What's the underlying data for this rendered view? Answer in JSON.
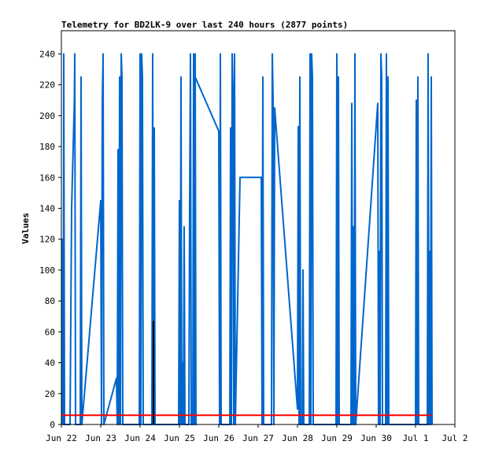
{
  "chart_data": {
    "type": "line",
    "title": "Telemetry for BD2LK-9 over last 240 hours (2877 points)",
    "xlabel": "",
    "ylabel": "Values",
    "x_ticks": [
      "Jun 22",
      "Jun 23",
      "Jun 24",
      "Jun 25",
      "Jun 26",
      "Jun 27",
      "Jun 28",
      "Jun 29",
      "Jun 30",
      "Jul 1",
      "Jul 2"
    ],
    "xlim_days": [
      0,
      10
    ],
    "ylim": [
      0,
      255
    ],
    "y_ticks": [
      0,
      20,
      40,
      60,
      80,
      100,
      120,
      140,
      160,
      180,
      200,
      220,
      240
    ],
    "grid": false,
    "legend": "none",
    "colors": {
      "blue": "#0066cc",
      "red": "#ff0000",
      "black": "#000000",
      "frame": "#000000"
    },
    "series": [
      {
        "color": "#0066cc",
        "points": [
          [
            0.02,
            0
          ],
          [
            0.03,
            120
          ],
          [
            0.05,
            0
          ],
          [
            0.06,
            240
          ],
          [
            0.08,
            0
          ],
          [
            0.22,
            0
          ],
          [
            0.26,
            140
          ],
          [
            0.3,
            180
          ],
          [
            0.33,
            210
          ],
          [
            0.34,
            240
          ],
          [
            0.36,
            0
          ],
          [
            0.48,
            0
          ],
          [
            0.5,
            225
          ],
          [
            0.52,
            0
          ],
          [
            1.0,
            145
          ],
          [
            1.02,
            0
          ],
          [
            1.04,
            210
          ],
          [
            1.06,
            240
          ],
          [
            1.08,
            0
          ],
          [
            1.4,
            30
          ],
          [
            1.42,
            0
          ],
          [
            1.44,
            178
          ],
          [
            1.46,
            0
          ],
          [
            1.48,
            225
          ],
          [
            1.5,
            0
          ],
          [
            1.52,
            240
          ],
          [
            1.54,
            225
          ],
          [
            1.56,
            0
          ],
          [
            1.98,
            0
          ],
          [
            2.0,
            240
          ],
          [
            2.02,
            0
          ],
          [
            2.04,
            240
          ],
          [
            2.06,
            225
          ],
          [
            2.08,
            0
          ],
          [
            2.3,
            0
          ],
          [
            2.32,
            240
          ],
          [
            2.34,
            0
          ],
          [
            2.36,
            192
          ],
          [
            2.38,
            0
          ],
          [
            2.98,
            0
          ],
          [
            3.0,
            145
          ],
          [
            3.02,
            0
          ],
          [
            3.04,
            225
          ],
          [
            3.06,
            0
          ],
          [
            3.08,
            40
          ],
          [
            3.1,
            0
          ],
          [
            3.12,
            128
          ],
          [
            3.14,
            0
          ],
          [
            3.24,
            0
          ],
          [
            3.26,
            145
          ],
          [
            3.28,
            240
          ],
          [
            3.3,
            0
          ],
          [
            3.34,
            0
          ],
          [
            3.36,
            240
          ],
          [
            3.38,
            0
          ],
          [
            3.4,
            240
          ],
          [
            3.42,
            0
          ],
          [
            3.4,
            225
          ],
          [
            4.0,
            190
          ],
          [
            4.02,
            0
          ],
          [
            4.04,
            240
          ],
          [
            4.06,
            0
          ],
          [
            4.28,
            0
          ],
          [
            4.3,
            192
          ],
          [
            4.32,
            0
          ],
          [
            4.34,
            240
          ],
          [
            4.36,
            215
          ],
          [
            4.38,
            0
          ],
          [
            4.4,
            240
          ],
          [
            4.42,
            0
          ],
          [
            4.54,
            160
          ],
          [
            5.08,
            160
          ],
          [
            5.1,
            0
          ],
          [
            5.12,
            225
          ],
          [
            5.14,
            0
          ],
          [
            5.34,
            0
          ],
          [
            5.36,
            240
          ],
          [
            5.38,
            210
          ],
          [
            5.4,
            0
          ],
          [
            5.42,
            205
          ],
          [
            6.0,
            10
          ],
          [
            6.02,
            193
          ],
          [
            6.04,
            0
          ],
          [
            6.06,
            225
          ],
          [
            6.08,
            0
          ],
          [
            6.12,
            0
          ],
          [
            6.14,
            100
          ],
          [
            6.16,
            0
          ],
          [
            6.3,
            0
          ],
          [
            6.32,
            240
          ],
          [
            6.34,
            0
          ],
          [
            6.36,
            240
          ],
          [
            6.38,
            225
          ],
          [
            6.4,
            0
          ],
          [
            6.98,
            0
          ],
          [
            7.0,
            240
          ],
          [
            7.02,
            0
          ],
          [
            7.04,
            225
          ],
          [
            7.06,
            0
          ],
          [
            7.36,
            0
          ],
          [
            7.38,
            208
          ],
          [
            7.4,
            0
          ],
          [
            7.42,
            128
          ],
          [
            7.44,
            0
          ],
          [
            7.46,
            240
          ],
          [
            7.48,
            0
          ],
          [
            8.04,
            208
          ],
          [
            8.06,
            0
          ],
          [
            8.08,
            112
          ],
          [
            8.1,
            0
          ],
          [
            8.12,
            240
          ],
          [
            8.14,
            225
          ],
          [
            8.16,
            0
          ],
          [
            8.24,
            0
          ],
          [
            8.26,
            240
          ],
          [
            8.28,
            0
          ],
          [
            8.3,
            225
          ],
          [
            8.32,
            0
          ],
          [
            9.0,
            0
          ],
          [
            9.02,
            210
          ],
          [
            9.04,
            0
          ],
          [
            9.06,
            225
          ],
          [
            9.08,
            0
          ],
          [
            9.3,
            0
          ],
          [
            9.32,
            240
          ],
          [
            9.34,
            0
          ],
          [
            9.36,
            112
          ],
          [
            9.38,
            0
          ],
          [
            9.4,
            225
          ],
          [
            9.42,
            0
          ]
        ]
      },
      {
        "color": "#ff0000",
        "points": [
          [
            0.0,
            6
          ],
          [
            9.4,
            6
          ]
        ]
      },
      {
        "color": "#000000",
        "points": [
          [
            2.34,
            67
          ],
          [
            2.34,
            0
          ]
        ]
      }
    ]
  }
}
